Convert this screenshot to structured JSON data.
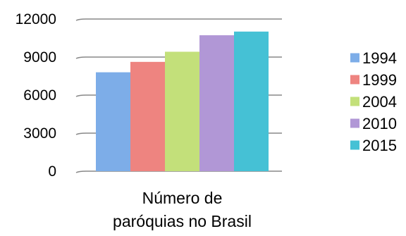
{
  "chart_data": {
    "type": "bar",
    "categories": [
      "Número de paróquias no Brasil"
    ],
    "category_lines": [
      "Número de",
      "paróquias no Brasil"
    ],
    "series": [
      {
        "name": "1994",
        "values": [
          7800
        ],
        "color": "#7dade8"
      },
      {
        "name": "1999",
        "values": [
          8620
        ],
        "color": "#ee8480"
      },
      {
        "name": "2004",
        "values": [
          9420
        ],
        "color": "#c3e07a"
      },
      {
        "name": "2010",
        "values": [
          10720
        ],
        "color": "#b197d6"
      },
      {
        "name": "2015",
        "values": [
          11010
        ],
        "color": "#45c1d5"
      }
    ],
    "y_ticks": [
      "0",
      "3000",
      "6000",
      "9000",
      "12000"
    ],
    "ylim": [
      0,
      12000
    ],
    "grid": true,
    "legend_position": "right",
    "gridline_color": "#888888"
  }
}
